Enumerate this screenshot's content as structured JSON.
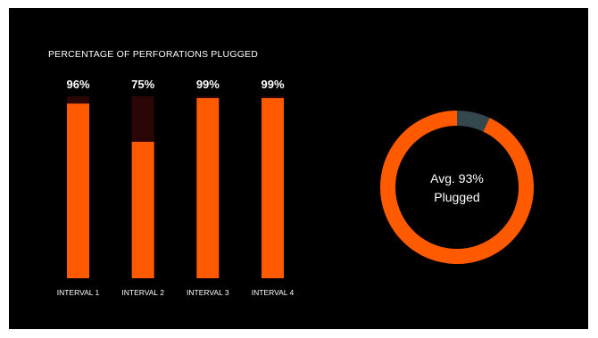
{
  "chart_data": [
    {
      "type": "bar",
      "title": "PERCENTAGE OF PERFORATIONS PLUGGED",
      "categories": [
        "INTERVAL 1",
        "INTERVAL 2",
        "INTERVAL 3",
        "INTERVAL 4"
      ],
      "values": [
        96,
        75,
        99,
        99
      ],
      "value_labels": [
        "96%",
        "75%",
        "99%",
        "99%"
      ],
      "ylim": [
        0,
        100
      ],
      "grid": false,
      "colors": {
        "fill": "#ff5a00",
        "remainder": "#2a0606",
        "text": "#ffffff"
      }
    },
    {
      "type": "pie",
      "style": "donut",
      "labels": [
        "Avg. 93%",
        "Plugged"
      ],
      "slices": [
        {
          "value": 93,
          "color": "#ff5a00"
        },
        {
          "value": 7,
          "color": "#34474c"
        }
      ]
    }
  ],
  "colors": {
    "background": "#000000",
    "accent": "#ff5a00"
  }
}
